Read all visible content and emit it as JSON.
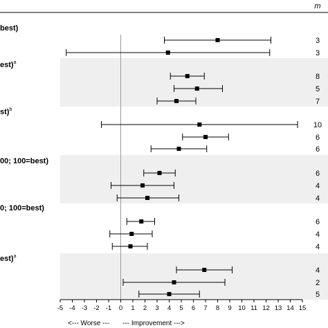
{
  "chart_data": {
    "type": "forest",
    "title": "",
    "header_m": "m",
    "xlabel_left": "<--- Worse ---",
    "xlabel_right": "--- Improvement --->",
    "xlim": [
      -5,
      15
    ],
    "xticks": [
      -5,
      -4,
      -3,
      -2,
      -1,
      0,
      1,
      2,
      3,
      4,
      5,
      6,
      7,
      8,
      9,
      10,
      11,
      12,
      13,
      14,
      15
    ],
    "reference_x": 0,
    "groups": [
      {
        "label": "best)",
        "superscript": "",
        "shaded": false,
        "rows": [
          {
            "estimate": 8.0,
            "lower": 3.6,
            "upper": 12.4,
            "m": "3"
          },
          {
            "estimate": 3.9,
            "lower": -4.5,
            "upper": 12.3,
            "m": "3"
          }
        ]
      },
      {
        "label": "est)",
        "superscript": "a",
        "shaded": true,
        "rows": [
          {
            "estimate": 5.5,
            "lower": 4.1,
            "upper": 6.9,
            "m": "8"
          },
          {
            "estimate": 6.3,
            "lower": 4.4,
            "upper": 8.4,
            "m": "5"
          },
          {
            "estimate": 4.6,
            "lower": 3.0,
            "upper": 6.2,
            "m": "7"
          }
        ]
      },
      {
        "label": "st)",
        "superscript": "b",
        "shaded": false,
        "rows": [
          {
            "estimate": 6.5,
            "lower": -1.6,
            "upper": 14.6,
            "m": "10"
          },
          {
            "estimate": 7.0,
            "lower": 5.1,
            "upper": 8.9,
            "m": "6"
          },
          {
            "estimate": 4.8,
            "lower": 2.5,
            "upper": 7.1,
            "m": "6"
          }
        ]
      },
      {
        "label": "00; 100=best)",
        "superscript": "",
        "shaded": true,
        "rows": [
          {
            "estimate": 3.2,
            "lower": 1.9,
            "upper": 4.5,
            "m": "6"
          },
          {
            "estimate": 1.8,
            "lower": -0.8,
            "upper": 4.4,
            "m": "4"
          },
          {
            "estimate": 2.2,
            "lower": -0.3,
            "upper": 4.8,
            "m": "4"
          }
        ]
      },
      {
        "label": "0; 100=best)",
        "superscript": "",
        "shaded": false,
        "rows": [
          {
            "estimate": 1.7,
            "lower": 0.5,
            "upper": 2.8,
            "m": "6"
          },
          {
            "estimate": 0.9,
            "lower": -0.9,
            "upper": 2.6,
            "m": "4"
          },
          {
            "estimate": 0.8,
            "lower": -0.7,
            "upper": 2.2,
            "m": "4"
          }
        ]
      },
      {
        "label": "est)",
        "superscript": "a",
        "shaded": true,
        "rows": [
          {
            "estimate": 6.9,
            "lower": 4.6,
            "upper": 9.2,
            "m": "4"
          },
          {
            "estimate": 4.4,
            "lower": 0.2,
            "upper": 8.6,
            "m": "2"
          },
          {
            "estimate": 4.0,
            "lower": 1.5,
            "upper": 6.5,
            "m": "5"
          }
        ]
      }
    ]
  }
}
